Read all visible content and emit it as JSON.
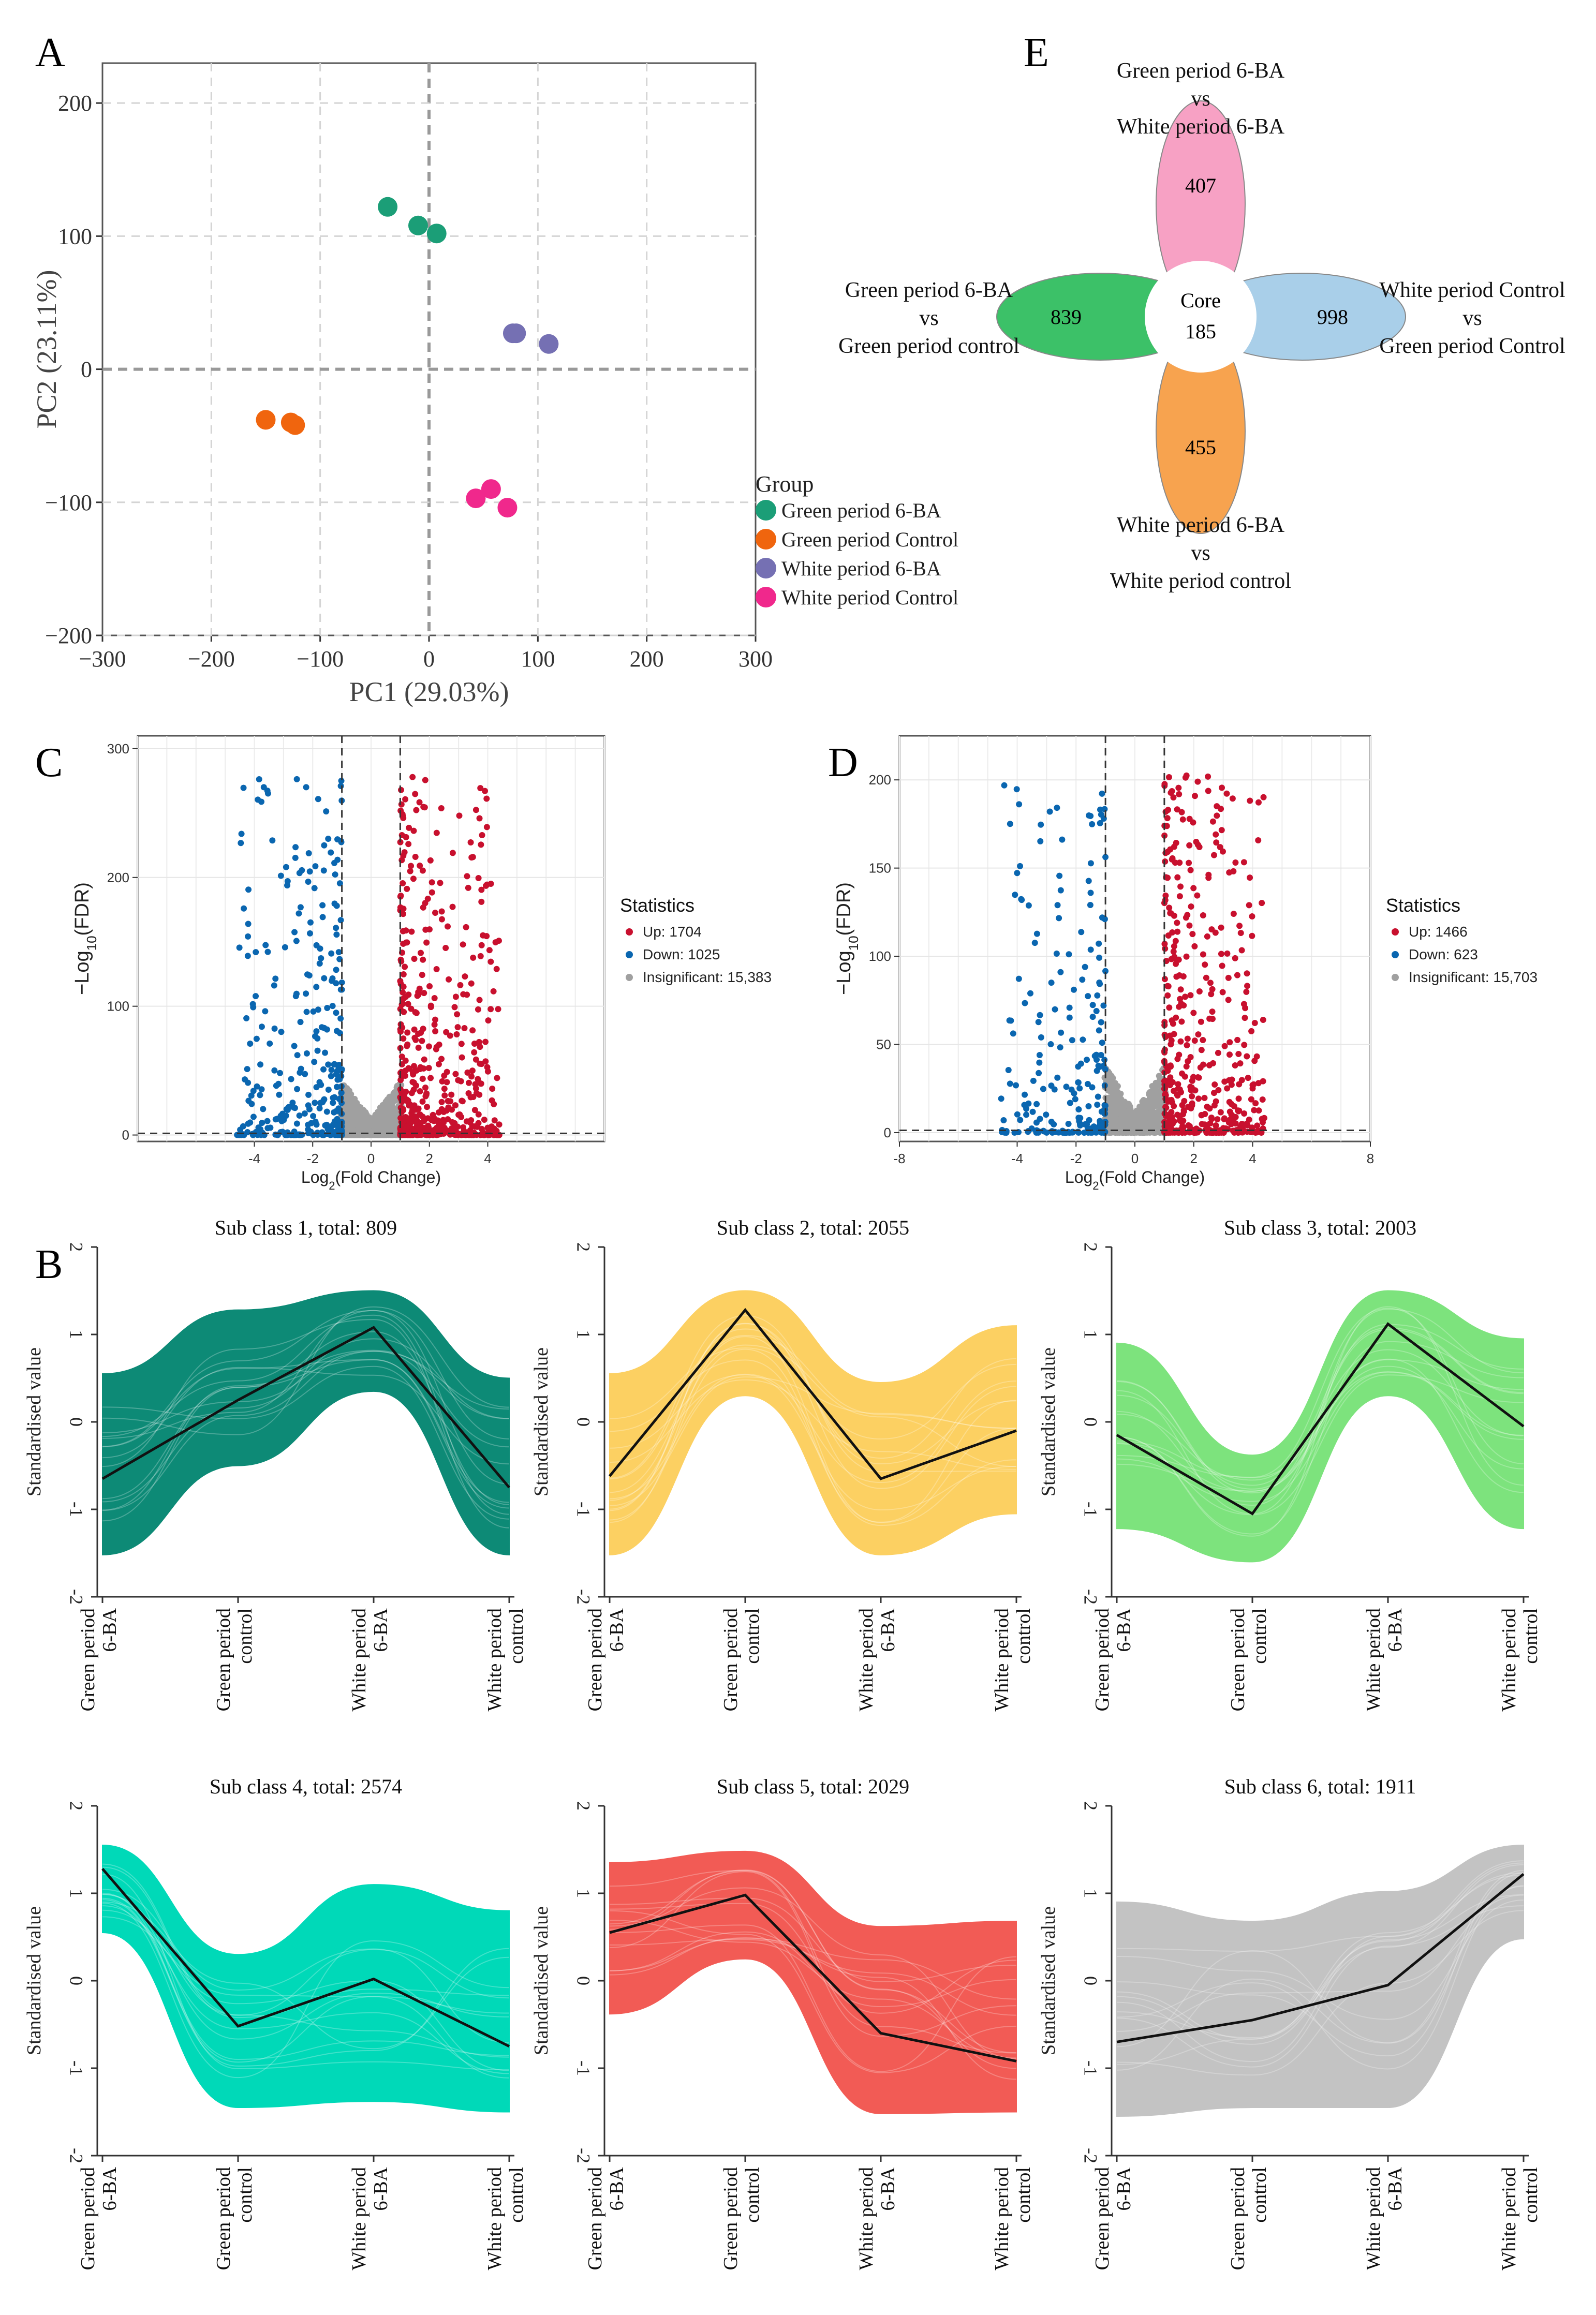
{
  "panel_letters": {
    "a": "A",
    "b": "B",
    "c": "C",
    "d": "D",
    "e": "E"
  },
  "chart_data": [
    {
      "id": "A",
      "type": "scatter",
      "title": "",
      "xlabel": "PC1 (29.03%)",
      "ylabel": "PC2 (23.11%)",
      "xlim": [
        -300,
        300
      ],
      "ylim": [
        -200,
        230
      ],
      "xticks": [
        -300,
        -200,
        -100,
        0,
        100,
        200,
        300
      ],
      "yticks": [
        -200,
        -100,
        0,
        100,
        200
      ],
      "grid": true,
      "legend_title": "Group",
      "series": [
        {
          "name": "Green period 6-BA",
          "color": "#1b9e77",
          "points": [
            [
              -38,
              122
            ],
            [
              -10,
              108
            ],
            [
              7,
              102
            ]
          ]
        },
        {
          "name": "Green period Control",
          "color": "#f0650e",
          "points": [
            [
              -150,
              -38
            ],
            [
              -127,
              -40
            ],
            [
              -123,
              -42
            ]
          ]
        },
        {
          "name": "White period 6-BA",
          "color": "#7570b3",
          "points": [
            [
              77,
              27
            ],
            [
              80,
              27
            ],
            [
              110,
              19
            ]
          ]
        },
        {
          "name": "White period Control",
          "color": "#f0288c",
          "points": [
            [
              43,
              -97
            ],
            [
              57,
              -90
            ],
            [
              72,
              -104
            ]
          ]
        }
      ]
    },
    {
      "id": "C",
      "type": "scatter",
      "title": "",
      "xlabel_main": "Log",
      "xlabel_sub": "2",
      "xlabel_rest": "(Fold Change)",
      "ylabel_pre": "−Log",
      "ylabel_sub": "10",
      "ylabel_rest": "(FDR)",
      "xlim": [
        -8,
        8
      ],
      "ylim": [
        -5,
        310
      ],
      "xticks": [
        -4,
        -2,
        0,
        2,
        4
      ],
      "yticks": [
        0,
        100,
        200,
        300
      ],
      "thresholds": {
        "fc": [
          -1,
          1
        ],
        "y": 1.3
      },
      "legend_title": "Statistics",
      "legend": [
        {
          "name": "Up: 1704",
          "color": "#c8102e"
        },
        {
          "name": "Down: 1025",
          "color": "#0a66b0"
        },
        {
          "name": "Insignificant: 15,383",
          "color": "#a0a0a0"
        }
      ]
    },
    {
      "id": "D",
      "type": "scatter",
      "title": "",
      "xlabel_main": "Log",
      "xlabel_sub": "2",
      "xlabel_rest": "(Fold Change)",
      "ylabel_pre": "−Log",
      "ylabel_sub": "10",
      "ylabel_rest": "(FDR)",
      "xlim": [
        -8,
        8
      ],
      "ylim": [
        -5,
        225
      ],
      "xticks": [
        -8,
        -4,
        -2,
        0,
        2,
        4,
        8
      ],
      "yticks": [
        0,
        50,
        100,
        150,
        200
      ],
      "thresholds": {
        "fc": [
          -1,
          1
        ],
        "y": 1.3
      },
      "legend_title": "Statistics",
      "legend": [
        {
          "name": "Up: 1466",
          "color": "#c8102e"
        },
        {
          "name": "Down: 623",
          "color": "#0a66b0"
        },
        {
          "name": "Insignificant: 15,703",
          "color": "#a0a0a0"
        }
      ]
    },
    {
      "id": "E",
      "type": "venn-flower",
      "core_label": "Core",
      "core_value": "185",
      "petals": [
        {
          "pos": "top",
          "value": "407",
          "color": "#f7a1c4",
          "label": [
            "Green period 6-BA",
            "vs",
            "White period 6-BA"
          ]
        },
        {
          "pos": "left",
          "value": "839",
          "color": "#3cc168",
          "label": [
            "Green period 6-BA",
            "vs",
            "Green period control"
          ]
        },
        {
          "pos": "right",
          "value": "998",
          "color": "#a9cfe9",
          "label": [
            "White period Control",
            "vs",
            "Green period Control"
          ]
        },
        {
          "pos": "bottom",
          "value": "455",
          "color": "#f7a34f",
          "label": [
            "White period 6-BA",
            "vs",
            "White period control"
          ]
        }
      ]
    },
    {
      "id": "B",
      "type": "line",
      "ylabel": "Standardised value",
      "ylim": [
        -2,
        2
      ],
      "yticks": [
        -2,
        -1,
        0,
        1,
        2
      ],
      "categories": [
        [
          "Green period",
          "6-BA"
        ],
        [
          "Green period",
          "control"
        ],
        [
          "White period",
          "6-BA"
        ],
        [
          "White period",
          "control"
        ]
      ],
      "subplots": [
        {
          "title": "Sub class 1, total: 809",
          "color": "#0d8a76",
          "mean": [
            -0.65,
            0.25,
            1.08,
            -0.75
          ],
          "upper": [
            0.55,
            1.28,
            1.5,
            0.5
          ],
          "lower": [
            -1.52,
            -0.5,
            0.35,
            -1.52
          ]
        },
        {
          "title": "Sub class 2, total: 2055",
          "color": "#fcd062",
          "mean": [
            -0.62,
            1.28,
            -0.65,
            -0.1
          ],
          "upper": [
            0.55,
            1.5,
            0.45,
            1.1
          ],
          "lower": [
            -1.52,
            0.3,
            -1.52,
            -1.05
          ]
        },
        {
          "title": "Sub class 3, total: 2003",
          "color": "#7de37d",
          "mean": [
            -0.15,
            -1.05,
            1.12,
            -0.05
          ],
          "upper": [
            0.9,
            -0.38,
            1.5,
            0.95
          ],
          "lower": [
            -1.22,
            -1.6,
            0.3,
            -1.22
          ]
        },
        {
          "title": "Sub class 4, total: 2574",
          "color": "#00d9b8",
          "mean": [
            1.28,
            -0.52,
            0.02,
            -0.75
          ],
          "upper": [
            1.55,
            0.3,
            1.1,
            0.8
          ],
          "lower": [
            0.55,
            -1.45,
            -1.38,
            -1.5
          ]
        },
        {
          "title": "Sub class 5, total: 2029",
          "color": "#f25b55",
          "mean": [
            0.55,
            0.98,
            -0.6,
            -0.92
          ],
          "upper": [
            1.35,
            1.48,
            0.62,
            0.68
          ],
          "lower": [
            -0.38,
            0.25,
            -1.52,
            -1.5
          ]
        },
        {
          "title": "Sub class 6, total: 1911",
          "color": "#c3c3c3",
          "mean": [
            -0.7,
            -0.45,
            -0.05,
            1.22
          ],
          "upper": [
            0.9,
            0.68,
            1.02,
            1.55
          ],
          "lower": [
            -1.55,
            -1.45,
            -1.45,
            0.48
          ]
        }
      ]
    }
  ]
}
